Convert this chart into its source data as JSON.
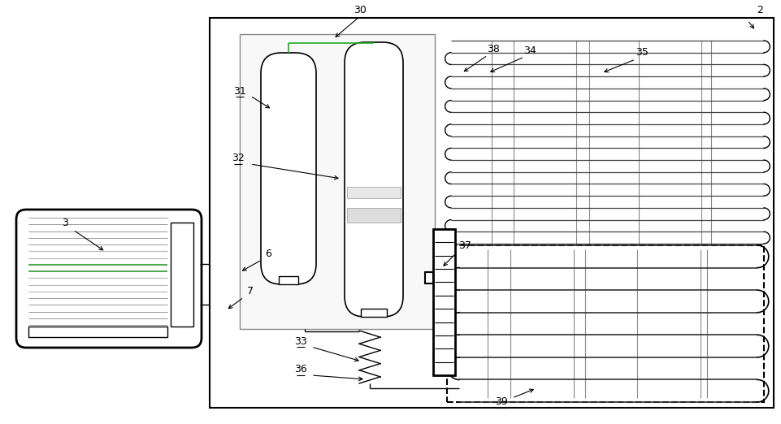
{
  "bg_color": "#ffffff",
  "lc": "#000000",
  "gray": "#aaaaaa",
  "light_gray": "#dddddd",
  "green": "#22aa22"
}
